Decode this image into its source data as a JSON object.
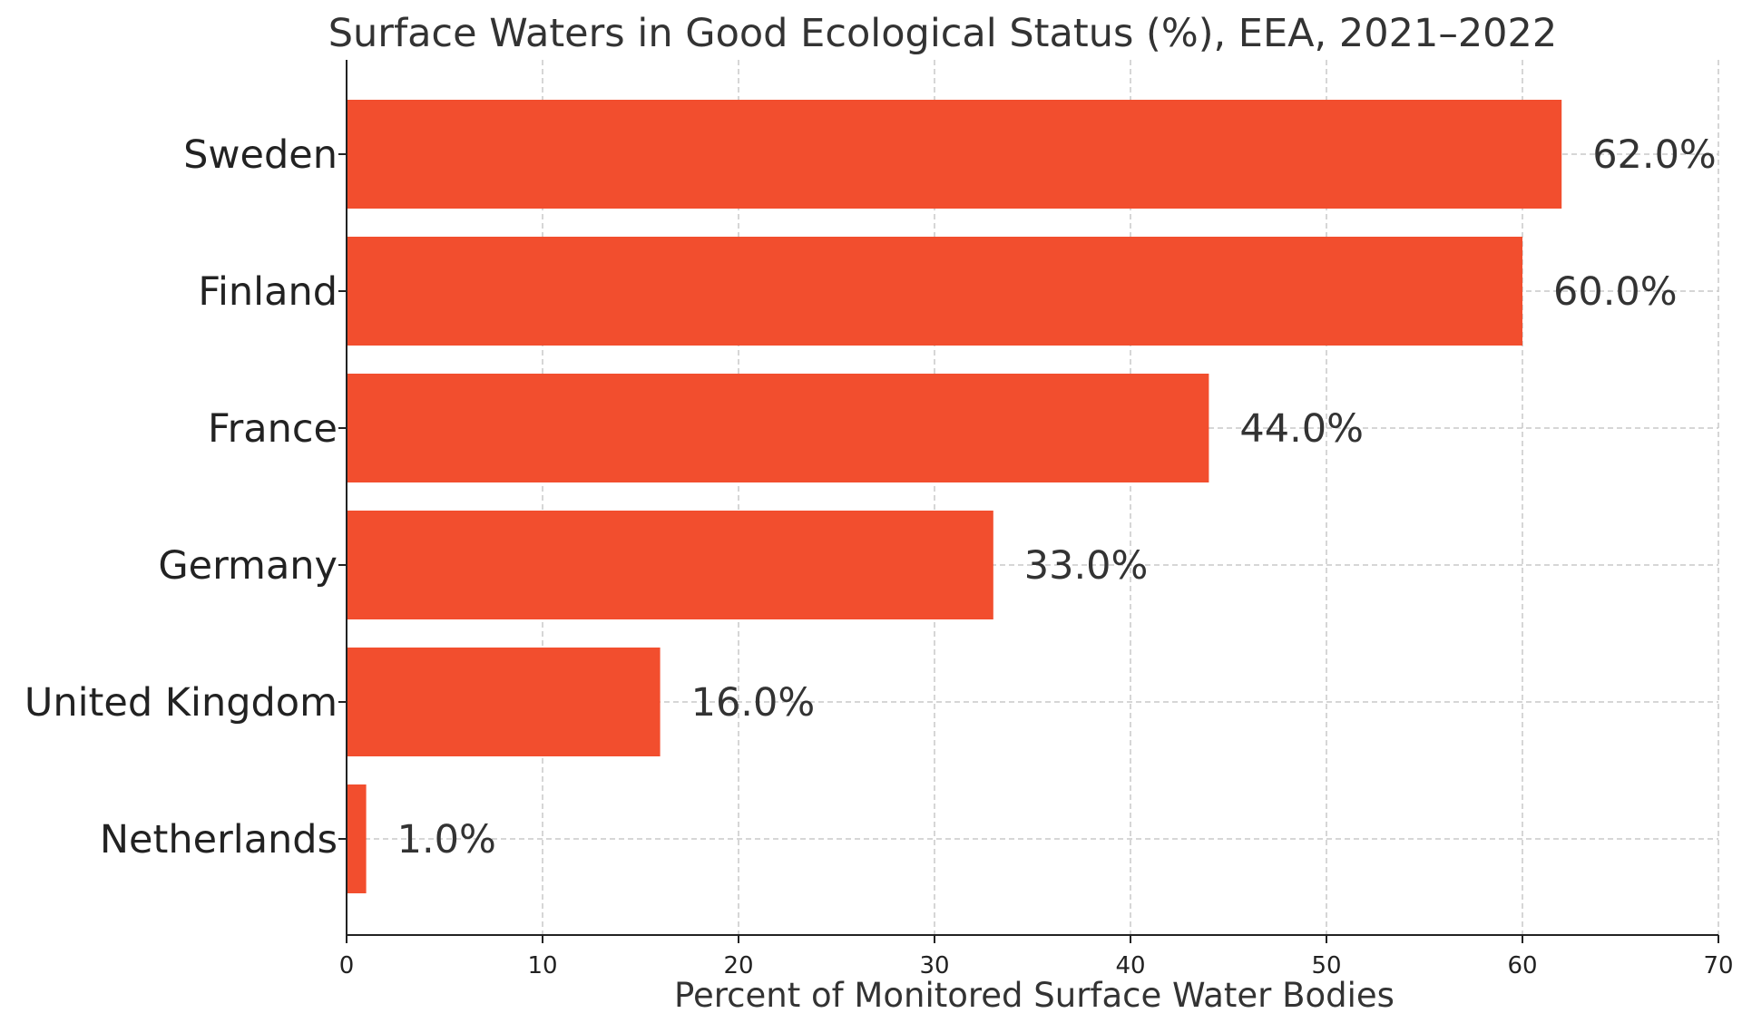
{
  "chart_data": {
    "type": "bar",
    "orientation": "horizontal",
    "title": "Surface Waters in Good Ecological Status (%), EEA, 2021–2022",
    "xlabel": "Percent of Monitored Surface Water Bodies",
    "ylabel": "",
    "categories": [
      "Sweden",
      "Finland",
      "France",
      "Germany",
      "United Kingdom",
      "Netherlands"
    ],
    "values": [
      62.0,
      60.0,
      44.0,
      33.0,
      16.0,
      1.0
    ],
    "data_labels": [
      "62.0%",
      "60.0%",
      "44.0%",
      "33.0%",
      "16.0%",
      "1.0%"
    ],
    "xlim": [
      0,
      70
    ],
    "x_ticks": [
      0,
      10,
      20,
      30,
      40,
      50,
      60,
      70
    ],
    "x_tick_labels": [
      "0",
      "10",
      "20",
      "30",
      "40",
      "50",
      "60",
      "70"
    ],
    "grid": true,
    "bar_color": "#F24E2E",
    "grid_color": "#C8C8C8",
    "axis_color": "#222222"
  }
}
